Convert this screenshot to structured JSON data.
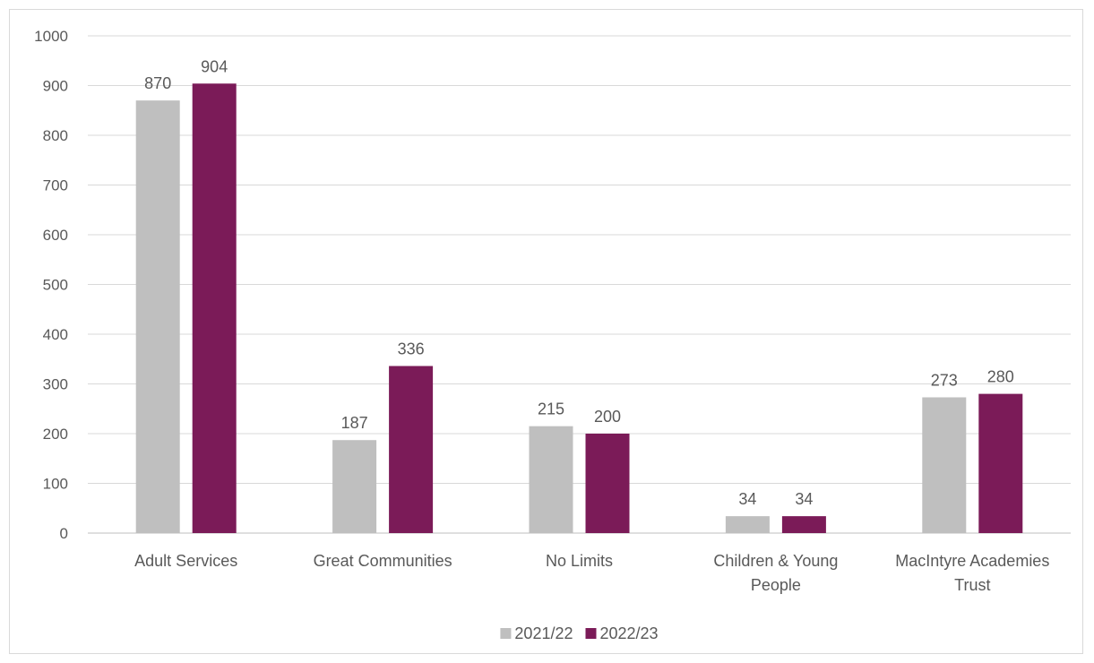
{
  "chart_data": {
    "type": "bar",
    "categories": [
      [
        "Adult Services"
      ],
      [
        "Great Communities"
      ],
      [
        "No Limits"
      ],
      [
        "Children & Young",
        "People"
      ],
      [
        "MacIntyre Academies",
        "Trust"
      ]
    ],
    "series": [
      {
        "name": "2021/22",
        "color": "#bfbfbf",
        "values": [
          870,
          187,
          215,
          34,
          273
        ]
      },
      {
        "name": "2022/23",
        "color": "#7b1b58",
        "values": [
          904,
          336,
          200,
          34,
          280
        ]
      }
    ],
    "ylim": [
      0,
      1000
    ],
    "yticks": [
      0,
      100,
      200,
      300,
      400,
      500,
      600,
      700,
      800,
      900,
      1000
    ],
    "grid": true,
    "legend": "bottom",
    "data_labels": true,
    "title": "",
    "xlabel": "",
    "ylabel": ""
  }
}
